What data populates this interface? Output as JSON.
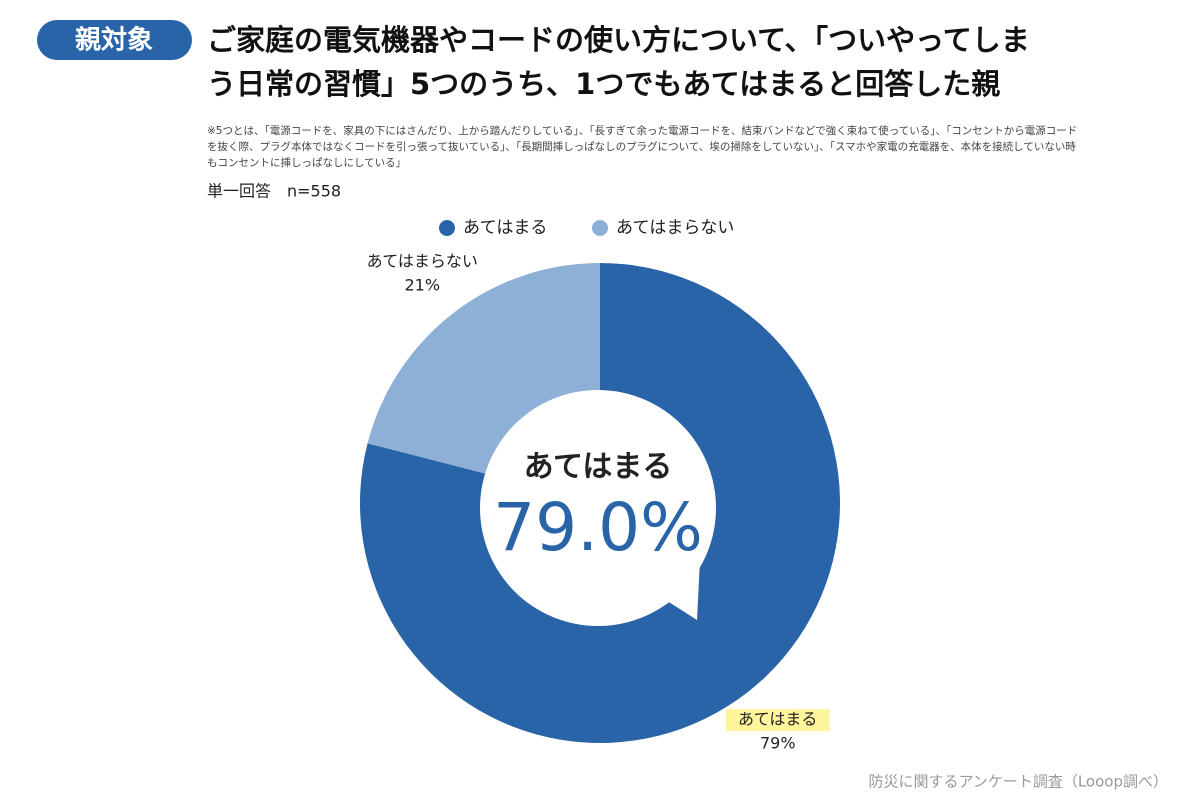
{
  "badge": "親対象",
  "chart_data": {
    "type": "donut",
    "title_lines": [
      "ご家庭の電気機器やコードの使い方について、「ついやってしま",
      "う日常の習慣」5つのうち、1つでもあてはまると回答した親"
    ],
    "note_lines": [
      "※5つとは、「電源コードを、家具の下にはさんだり、上から踏んだりしている」、「長すぎて余った電源コードを、結束バンドなどで強く束ねて使っている」、「コンセントから電源コード",
      "を抜く際、プラグ本体ではなくコードを引っ張って抜いている」、「長期間挿しっぱなしのプラグについて、埃の掃除をしていない」、「スマホや家電の充電器を、本体を接続していない時",
      "もコンセントに挿しっぱなしにしている」"
    ],
    "subtitle": "単一回答　n=558",
    "categories": [
      "あてはまる",
      "あてはまらない"
    ],
    "values": [
      79,
      21
    ],
    "value_labels": [
      "79%",
      "21%"
    ],
    "colors": [
      "#2a64a8",
      "#8fb0d6"
    ],
    "center_label": "あてはまる",
    "center_value": "79.0%",
    "source": "防災に関するアンケート調査（Looop調べ）"
  }
}
